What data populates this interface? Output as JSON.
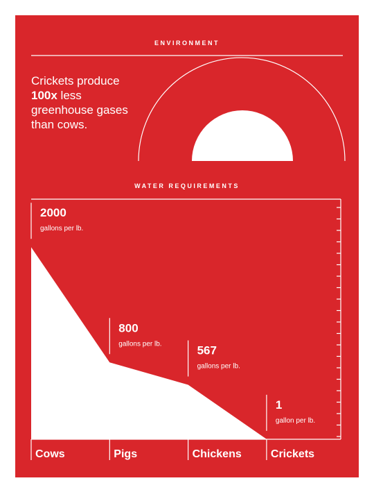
{
  "environment": {
    "title": "ENVIRONMENT",
    "statement": [
      [
        "Crickets produce"
      ],
      [
        "100x",
        " less"
      ],
      [
        "greenhouse gases"
      ],
      [
        "than cows."
      ]
    ]
  },
  "chart_data": {
    "type": "area",
    "title": "WATER REQUIREMENTS",
    "categories": [
      "Cows",
      "Pigs",
      "Chickens",
      "Crickets"
    ],
    "values": [
      2000,
      800,
      567,
      1
    ],
    "unit_labels": [
      "gallons per lb.",
      "gallons per lb.",
      "gallons per lb.",
      "gallon per lb."
    ],
    "color": "#ffffff",
    "ylim": [
      0,
      2500
    ]
  }
}
